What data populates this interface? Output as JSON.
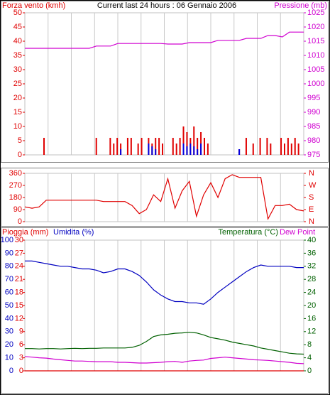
{
  "chart_data": [
    {
      "type": "bar",
      "title": "Current last 24 hours : 06 Gennaio 2006",
      "y_label": "Forza vento (kmh)",
      "y2_label": "Pressione (mb)",
      "y_color": "#e00000",
      "y2_color": "#d000d0",
      "ylim": [
        0,
        50
      ],
      "yticks": [
        0,
        5,
        10,
        15,
        20,
        25,
        30,
        35,
        40,
        45,
        50
      ],
      "y2lim": [
        975,
        1025
      ],
      "y2ticks": [
        975,
        980,
        985,
        990,
        995,
        1000,
        1005,
        1010,
        1015,
        1020,
        1025
      ],
      "grid": true,
      "series": [
        {
          "type": "bar",
          "color": "#e00000",
          "values": [
            0,
            0,
            0,
            0,
            0,
            6,
            0,
            0,
            0,
            0,
            0,
            0,
            0,
            0,
            0,
            0,
            0,
            0,
            0,
            0,
            6,
            0,
            0,
            0,
            6,
            4,
            6,
            4,
            0,
            6,
            6,
            0,
            4,
            6,
            0,
            6,
            4,
            6,
            6,
            4,
            0,
            0,
            6,
            4,
            6,
            10,
            8,
            6,
            10,
            6,
            8,
            6,
            4,
            0,
            0,
            0,
            0,
            0,
            0,
            0,
            0,
            2,
            0,
            6,
            0,
            4,
            0,
            6,
            0,
            6,
            4,
            0,
            0,
            6,
            4,
            6,
            4,
            6,
            4,
            0
          ]
        },
        {
          "type": "bar",
          "color": "#0000e0",
          "values": [
            0,
            0,
            0,
            0,
            0,
            0,
            0,
            0,
            0,
            0,
            0,
            0,
            0,
            0,
            0,
            0,
            0,
            0,
            0,
            0,
            0,
            0,
            0,
            0,
            0,
            0,
            0,
            2,
            0,
            0,
            0,
            0,
            0,
            0,
            0,
            4,
            3,
            2,
            0,
            0,
            0,
            0,
            0,
            0,
            0,
            4,
            3,
            4,
            3,
            2,
            4,
            0,
            0,
            0,
            0,
            0,
            0,
            0,
            0,
            0,
            0,
            2,
            0,
            0,
            0,
            0,
            0,
            0,
            0,
            0,
            0,
            0,
            0,
            0,
            0,
            0,
            0,
            0,
            0,
            0
          ]
        },
        {
          "type": "line",
          "axis": "y2",
          "color": "#d000d0",
          "values": [
            1012.5,
            1012.5,
            1012.5,
            1012.5,
            1012.5,
            1012.5,
            1012.5,
            1012.5,
            1012.5,
            1012.5,
            1013.3,
            1013.3,
            1013.3,
            1014.2,
            1014.2,
            1014.2,
            1014.2,
            1014.2,
            1014.2,
            1014.2,
            1014,
            1014,
            1014,
            1014.5,
            1014.5,
            1014.5,
            1014.5,
            1015.3,
            1015.3,
            1015.3,
            1015.3,
            1016,
            1016,
            1016,
            1017,
            1017,
            1016.5,
            1018.2,
            1018.2,
            1018.2
          ]
        }
      ]
    },
    {
      "type": "line",
      "y_color": "#e00000",
      "y2_color": "#e00000",
      "ylim": [
        0,
        360
      ],
      "yticks": [
        0,
        90,
        180,
        270,
        360
      ],
      "y2lim": [
        0,
        360
      ],
      "y2ticks": [
        {
          "value": 0,
          "label": "N"
        },
        {
          "value": 90,
          "label": "E"
        },
        {
          "value": 180,
          "label": "S"
        },
        {
          "value": 270,
          "label": "W"
        },
        {
          "value": 360,
          "label": "N"
        }
      ],
      "grid": true,
      "series": [
        {
          "type": "line",
          "color": "#e00000",
          "values": [
            110,
            100,
            110,
            160,
            160,
            160,
            160,
            160,
            160,
            160,
            160,
            150,
            150,
            150,
            150,
            120,
            60,
            90,
            200,
            150,
            320,
            100,
            230,
            300,
            40,
            200,
            290,
            180,
            320,
            350,
            330,
            330,
            330,
            330,
            20,
            120,
            120,
            130,
            90,
            80
          ]
        }
      ]
    },
    {
      "type": "line",
      "y_color": "#e00000",
      "y2_color": "#0000c0",
      "y3_color": "#006000",
      "ylim": [
        0,
        30
      ],
      "yticks": [
        0,
        3,
        6,
        9,
        12,
        15,
        18,
        21,
        24,
        27,
        30
      ],
      "y2lim": [
        0,
        100
      ],
      "y2ticks": [
        0,
        10,
        20,
        30,
        40,
        50,
        60,
        70,
        80,
        90,
        100
      ],
      "y3lim": [
        0,
        40
      ],
      "y3ticks": [
        0,
        4,
        8,
        12,
        16,
        20,
        24,
        28,
        32,
        36,
        40
      ],
      "grid": true,
      "series": [
        {
          "name": "Pioggia (mm)",
          "type": "line",
          "color": "#e00000",
          "values": [
            0,
            0,
            0,
            0,
            0,
            0,
            0,
            0,
            0,
            0,
            0,
            0,
            0,
            0,
            0,
            0,
            0,
            0,
            0,
            0,
            0,
            0,
            0,
            0,
            0,
            0,
            0,
            0,
            0,
            0,
            0,
            0,
            0,
            0,
            0,
            0,
            0,
            0,
            0,
            0
          ]
        },
        {
          "name": "Umidita (%)",
          "type": "line",
          "axis": "y2",
          "color": "#0000c0",
          "values": [
            84,
            84,
            83,
            82,
            81,
            80,
            80,
            79,
            78,
            78,
            77,
            75,
            76,
            78,
            78,
            76,
            73,
            68,
            62,
            58,
            55,
            53,
            53,
            52,
            52,
            51,
            55,
            60,
            64,
            68,
            72,
            76,
            79,
            81,
            80,
            80,
            80,
            80,
            79,
            79
          ]
        },
        {
          "name": "Temperatura (°C)",
          "type": "line",
          "axis": "y3",
          "color": "#006000",
          "values": [
            6.8,
            6.8,
            6.7,
            6.8,
            6.8,
            6.7,
            6.8,
            6.9,
            6.8,
            6.9,
            6.9,
            7,
            7,
            7,
            7,
            7.2,
            7.8,
            9,
            10.5,
            11,
            11.2,
            11.5,
            11.6,
            11.8,
            11.6,
            11,
            10.2,
            9.8,
            9.4,
            8.8,
            8.4,
            8,
            7.6,
            7,
            6.6,
            6.2,
            5.8,
            5.4,
            5.2,
            5.1
          ]
        },
        {
          "name": "Dew Point",
          "type": "line",
          "axis": "y3",
          "color": "#d000d0",
          "values": [
            4.4,
            4.2,
            4,
            3.9,
            3.6,
            3.4,
            3.2,
            3,
            3,
            2.9,
            2.8,
            2.8,
            2.8,
            2.6,
            2.6,
            2.5,
            2.4,
            2.4,
            2.5,
            2.6,
            2.8,
            2.9,
            2.6,
            3,
            3.2,
            3.3,
            3.8,
            4,
            4.2,
            4,
            3.8,
            3.6,
            3.4,
            3.3,
            3.2,
            3,
            2.8,
            2.6,
            2.3,
            2.2
          ]
        }
      ]
    }
  ]
}
